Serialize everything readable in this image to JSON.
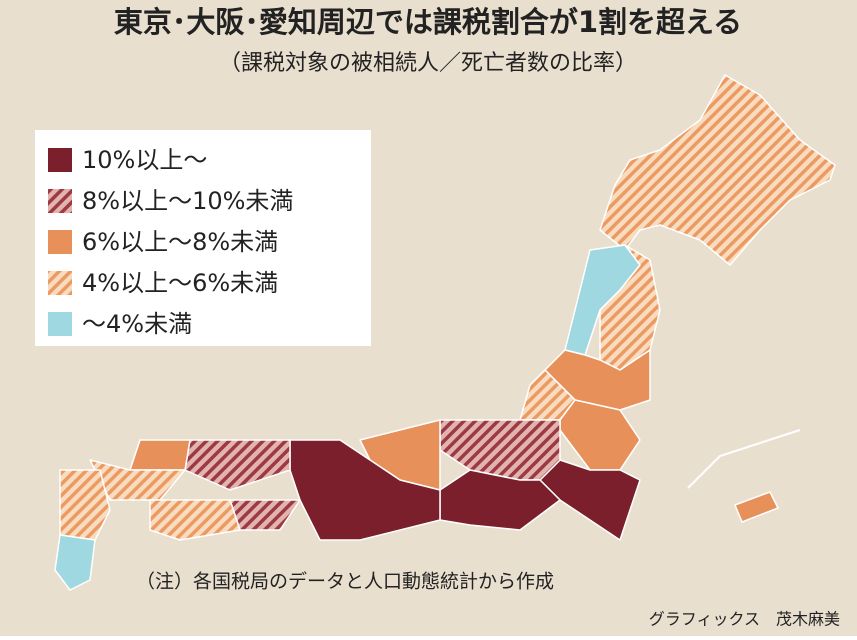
{
  "title": "東京･大阪･愛知周辺では課税割合が1割を超える",
  "subtitle": "（課税対象の被相続人／死亡者数の比率）",
  "legend": [
    {
      "label": "10%以上～",
      "color": "#7a1f2b",
      "hatch": false
    },
    {
      "label": "8%以上～10%未満",
      "color": "#9b3a45",
      "background": "#e3b3ad",
      "hatch": true
    },
    {
      "label": "6%以上～8%未満",
      "color": "#e8905a",
      "hatch": false
    },
    {
      "label": "4%以上～6%未満",
      "color": "#ec9a62",
      "background": "#f8dcc0",
      "hatch": true
    },
    {
      "label": "～4%未満",
      "color": "#9fd8e0",
      "hatch": false
    }
  ],
  "note": "（注）各国税局のデータと人口動態統計から作成",
  "credit": "グラフィックス　茂木麻美"
}
